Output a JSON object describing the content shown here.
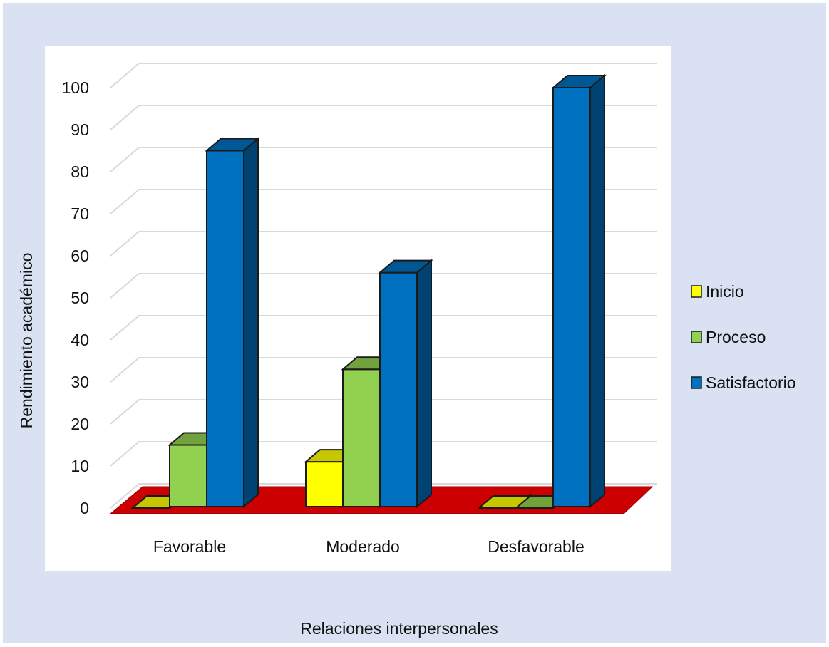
{
  "chart_data": {
    "type": "bar",
    "title": "",
    "xlabel": "Relaciones interpersonales",
    "ylabel": "Rendimiento académico",
    "categories": [
      "Favorable",
      "Moderado",
      "Desfavorable"
    ],
    "series": [
      {
        "name": "Inicio",
        "values": [
          0,
          11,
          0
        ],
        "color": "#ffff00"
      },
      {
        "name": "Proceso",
        "values": [
          15,
          33,
          0
        ],
        "color": "#92d050"
      },
      {
        "name": "Satisfactorio",
        "values": [
          85,
          56,
          100
        ],
        "color": "#0070c0"
      }
    ],
    "ylim": [
      0,
      100
    ],
    "yticks": [
      "0",
      "10",
      "20",
      "30",
      "40",
      "50",
      "60",
      "70",
      "80",
      "90",
      "100"
    ],
    "grid": true,
    "legend": "right",
    "floor_color": "#cc0000",
    "background_color": "#d9e1f2"
  }
}
